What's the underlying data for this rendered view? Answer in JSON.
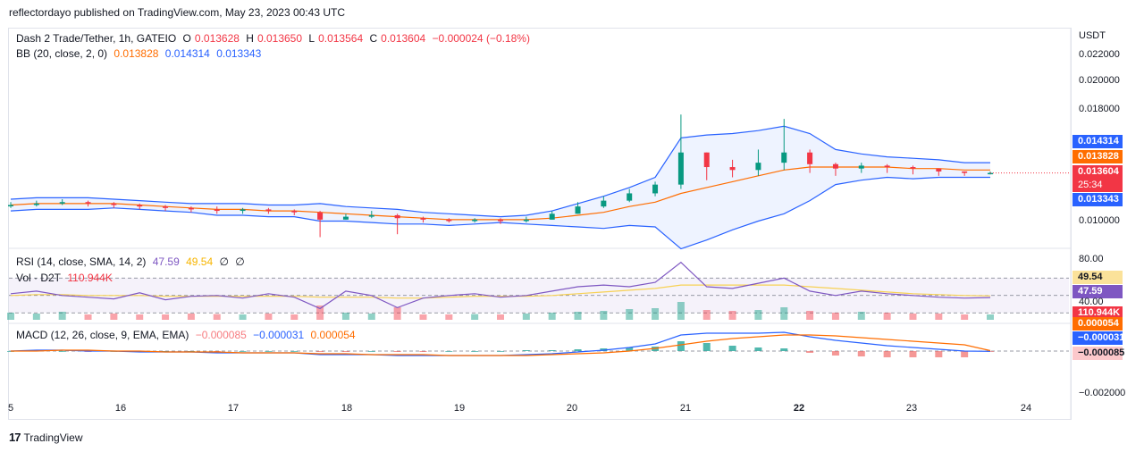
{
  "header": {
    "published": "reflectordayo published on TradingView.com, May 23, 2023 00:43 UTC"
  },
  "legend": {
    "symbol": "Dash 2 Trade/Tether, 1h, GATEIO",
    "o_label": "O",
    "o_value": "0.013628",
    "h_label": "H",
    "h_value": "0.013650",
    "l_label": "L",
    "l_value": "0.013564",
    "c_label": "C",
    "c_value": "0.013604",
    "change": "−0.000024 (−0.18%)",
    "bb_label": "BB (20, close, 2, 0)",
    "bb_basis": "0.013828",
    "bb_upper": "0.014314",
    "bb_lower": "0.013343",
    "rsi_label": "RSI (14, close, SMA, 14, 2)",
    "rsi_value": "47.59",
    "rsi_sma": "49.54",
    "rsi_extra1": "∅",
    "rsi_extra2": "∅",
    "vol_label": "Vol · D2T",
    "vol_value": "110.944K",
    "macd_label": "MACD (12, 26, close, 9, EMA, EMA)",
    "macd_hist": "−0.000085",
    "macd_line": "−0.000031",
    "macd_signal": "0.000054"
  },
  "price_axis": {
    "currency": "USDT",
    "ticks": [
      "0.022000",
      "0.020000",
      "0.018000",
      "0.010000"
    ],
    "badges": {
      "upper": "0.014314",
      "basis": "0.013828",
      "price": "0.013604",
      "countdown": "25:34",
      "lower": "0.013343"
    }
  },
  "rsi_axis": {
    "ticks": [
      "80.00",
      "40.00"
    ],
    "sma_badge": "49.54",
    "rsi_badge": "47.59",
    "vol_badge": "110.944K",
    "vol_badge2": "0.000054"
  },
  "macd_axis": {
    "line_badge": "−0.000031",
    "hist_badge": "−0.000085",
    "tick": "−0.002000"
  },
  "time_axis": {
    "ticks": [
      "5",
      "16",
      "17",
      "18",
      "19",
      "20",
      "21",
      "22",
      "23",
      "24"
    ]
  },
  "footer": {
    "brand": "TradingView",
    "brand_mark": "17"
  },
  "colors": {
    "up": "#089981",
    "down": "#f23645",
    "bb_basis": "#ff6d00",
    "bb_band": "#2962ff",
    "bb_fill": "#2962ff",
    "rsi": "#7e57c2",
    "rsi_sma": "#f7d154",
    "macd": "#2962ff",
    "signal": "#ff6d00",
    "price_badge": "#f23645",
    "lower_badge": "#2962ff"
  },
  "chart_data": {
    "type": "candlestick",
    "timeframe": "1h",
    "x_ticks": [
      "5",
      "16",
      "17",
      "18",
      "19",
      "20",
      "21",
      "22",
      "23",
      "24"
    ],
    "price": {
      "ylim": [
        0.0088,
        0.023
      ],
      "closes": [
        0.0114,
        0.0115,
        0.0116,
        0.0115,
        0.0114,
        0.0113,
        0.0112,
        0.0111,
        0.011,
        0.0111,
        0.011,
        0.0109,
        0.0104,
        0.0106,
        0.0107,
        0.0105,
        0.0104,
        0.0103,
        0.0104,
        0.0103,
        0.0104,
        0.0108,
        0.0113,
        0.0117,
        0.0122,
        0.0128,
        0.015,
        0.014,
        0.0138,
        0.0143,
        0.015,
        0.0142,
        0.0139,
        0.0141,
        0.014,
        0.0139,
        0.0137,
        0.0136,
        0.0136
      ],
      "highs": [
        0.0116,
        0.0117,
        0.0118,
        0.0117,
        0.0116,
        0.0115,
        0.0114,
        0.0113,
        0.0113,
        0.0112,
        0.0112,
        0.0111,
        0.011,
        0.0108,
        0.011,
        0.0108,
        0.0106,
        0.0105,
        0.0105,
        0.0105,
        0.0106,
        0.011,
        0.0116,
        0.012,
        0.0125,
        0.013,
        0.0176,
        0.015,
        0.0145,
        0.0152,
        0.0173,
        0.0152,
        0.0143,
        0.0143,
        0.0142,
        0.0141,
        0.0139,
        0.0137,
        0.0137
      ],
      "lows": [
        0.0112,
        0.0113,
        0.0114,
        0.0113,
        0.0112,
        0.0111,
        0.011,
        0.0109,
        0.0108,
        0.0108,
        0.0108,
        0.0107,
        0.0092,
        0.0104,
        0.0105,
        0.0094,
        0.0102,
        0.0102,
        0.0102,
        0.0101,
        0.0102,
        0.0104,
        0.0108,
        0.0112,
        0.0116,
        0.012,
        0.0125,
        0.0131,
        0.0133,
        0.0134,
        0.0138,
        0.0136,
        0.0134,
        0.0136,
        0.0136,
        0.0135,
        0.0134,
        0.0134,
        0.0135
      ],
      "bb_upper": [
        0.0118,
        0.0119,
        0.0119,
        0.0119,
        0.0118,
        0.0117,
        0.0116,
        0.0115,
        0.0115,
        0.0115,
        0.0114,
        0.0114,
        0.0115,
        0.0113,
        0.0112,
        0.0111,
        0.0109,
        0.0108,
        0.0107,
        0.0106,
        0.0107,
        0.011,
        0.0115,
        0.012,
        0.0126,
        0.0133,
        0.016,
        0.0162,
        0.0163,
        0.0165,
        0.0168,
        0.0163,
        0.0152,
        0.0149,
        0.0147,
        0.0146,
        0.0145,
        0.0143,
        0.0143
      ],
      "bb_basis": [
        0.0114,
        0.0115,
        0.0115,
        0.0115,
        0.0115,
        0.0114,
        0.0113,
        0.0112,
        0.0111,
        0.0111,
        0.011,
        0.011,
        0.0109,
        0.0108,
        0.0107,
        0.0106,
        0.0105,
        0.0104,
        0.0104,
        0.0104,
        0.0104,
        0.0105,
        0.0107,
        0.0109,
        0.0113,
        0.0116,
        0.0122,
        0.0126,
        0.013,
        0.0134,
        0.0138,
        0.014,
        0.014,
        0.014,
        0.014,
        0.0139,
        0.0139,
        0.0138,
        0.0138
      ],
      "bb_lower": [
        0.011,
        0.0111,
        0.0111,
        0.0111,
        0.0112,
        0.0111,
        0.011,
        0.0109,
        0.0107,
        0.0107,
        0.0106,
        0.0106,
        0.0103,
        0.0103,
        0.0102,
        0.0101,
        0.0101,
        0.01,
        0.0101,
        0.0102,
        0.0101,
        0.01,
        0.0099,
        0.0098,
        0.01,
        0.0099,
        0.0084,
        0.009,
        0.0097,
        0.0103,
        0.0108,
        0.0117,
        0.0128,
        0.0131,
        0.0133,
        0.0132,
        0.0133,
        0.0133,
        0.0133
      ]
    },
    "rsi": {
      "ylim": [
        20,
        100
      ],
      "upper": 70,
      "mid": 50,
      "lower": 30,
      "values": [
        52,
        55,
        50,
        48,
        46,
        53,
        45,
        49,
        50,
        47,
        52,
        48,
        35,
        55,
        50,
        36,
        47,
        50,
        52,
        48,
        50,
        55,
        60,
        62,
        60,
        65,
        88,
        60,
        58,
        64,
        70,
        55,
        50,
        55,
        52,
        50,
        48,
        47,
        47.59
      ],
      "sma": [
        50,
        51,
        51,
        50,
        50,
        50,
        49,
        49,
        49,
        49,
        49,
        49,
        48,
        48,
        48,
        47,
        47,
        48,
        49,
        49,
        49,
        50,
        52,
        54,
        56,
        58,
        62,
        62,
        62,
        62,
        62,
        60,
        58,
        56,
        54,
        52,
        51,
        50,
        49.54
      ]
    },
    "volume": {
      "values": [
        40,
        35,
        45,
        30,
        35,
        30,
        30,
        35,
        32,
        30,
        35,
        30,
        80,
        40,
        35,
        70,
        30,
        30,
        32,
        30,
        35,
        40,
        45,
        50,
        60,
        65,
        100,
        55,
        50,
        55,
        70,
        50,
        40,
        45,
        40,
        35,
        35,
        30,
        30
      ]
    },
    "macd": {
      "macd": [
        0,
        0.1,
        0.1,
        0,
        0,
        -0.1,
        -0.1,
        -0.1,
        -0.2,
        -0.2,
        -0.2,
        -0.2,
        -0.4,
        -0.4,
        -0.4,
        -0.5,
        -0.5,
        -0.5,
        -0.5,
        -0.5,
        -0.4,
        -0.3,
        -0.1,
        0.1,
        0.4,
        0.8,
        1.8,
        2.0,
        2.0,
        2.0,
        2.1,
        1.6,
        1.2,
        0.9,
        0.6,
        0.4,
        0.2,
        0,
        -0.031
      ],
      "signal": [
        0,
        0,
        0.1,
        0.1,
        0,
        0,
        -0.1,
        -0.1,
        -0.1,
        -0.2,
        -0.2,
        -0.2,
        -0.3,
        -0.3,
        -0.4,
        -0.4,
        -0.4,
        -0.5,
        -0.5,
        -0.5,
        -0.5,
        -0.4,
        -0.3,
        -0.2,
        0,
        0.3,
        0.7,
        1.1,
        1.4,
        1.6,
        1.8,
        1.8,
        1.7,
        1.5,
        1.3,
        1.1,
        0.9,
        0.7,
        0.054
      ]
    }
  }
}
